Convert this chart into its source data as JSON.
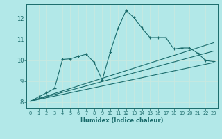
{
  "xlabel": "Humidex (Indice chaleur)",
  "background_color": "#b2e8e8",
  "grid_color": "#c8e8e0",
  "line_color": "#1a6b6b",
  "xlim": [
    -0.5,
    23.5
  ],
  "ylim": [
    7.7,
    12.7
  ],
  "yticks": [
    8,
    9,
    10,
    11,
    12
  ],
  "xticks": [
    0,
    1,
    2,
    3,
    4,
    5,
    6,
    7,
    8,
    9,
    10,
    11,
    12,
    13,
    14,
    15,
    16,
    17,
    18,
    19,
    20,
    21,
    22,
    23
  ],
  "main_x": [
    0,
    1,
    2,
    3,
    4,
    5,
    6,
    7,
    8,
    9,
    10,
    11,
    12,
    13,
    14,
    15,
    16,
    17,
    18,
    19,
    20,
    21,
    22,
    23
  ],
  "main_y": [
    8.05,
    8.25,
    8.45,
    8.65,
    10.05,
    10.08,
    10.2,
    10.3,
    9.9,
    9.05,
    10.4,
    11.55,
    12.4,
    12.05,
    11.55,
    11.1,
    11.1,
    11.1,
    10.55,
    10.6,
    10.6,
    10.35,
    10.0,
    9.95
  ],
  "line2_x": [
    0,
    23
  ],
  "line2_y": [
    8.05,
    10.85
  ],
  "line3_x": [
    0,
    23
  ],
  "line3_y": [
    8.05,
    10.45
  ],
  "line4_x": [
    0,
    23
  ],
  "line4_y": [
    8.05,
    9.9
  ]
}
